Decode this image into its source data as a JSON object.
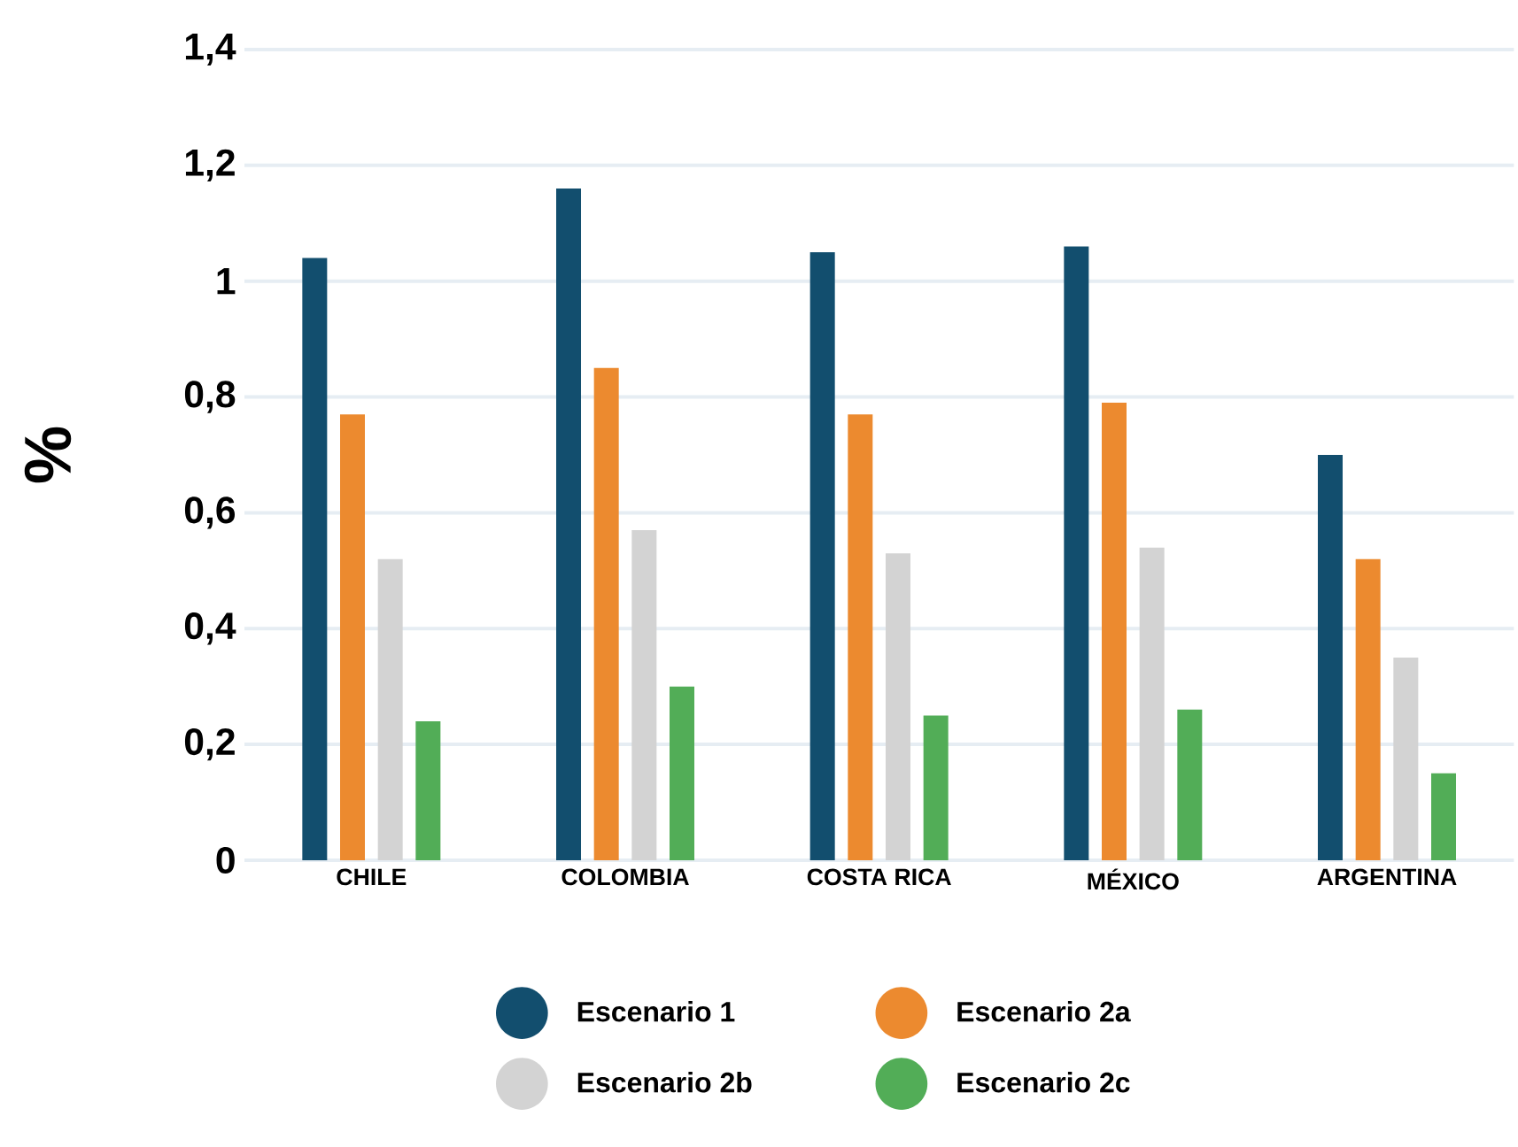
{
  "chart_data": {
    "type": "bar",
    "ylabel": "%",
    "categories": [
      "CHILE",
      "COLOMBIA",
      "COSTA RICA",
      "MÉXICO",
      "ARGENTINA"
    ],
    "series": [
      {
        "name": "Escenario 1",
        "color": "#124e6e",
        "values": [
          1.04,
          1.16,
          1.05,
          1.06,
          0.7
        ]
      },
      {
        "name": "Escenario 2a",
        "color": "#ec8a2f",
        "values": [
          0.77,
          0.85,
          0.77,
          0.79,
          0.52
        ]
      },
      {
        "name": "Escenario 2b",
        "color": "#d3d3d3",
        "values": [
          0.52,
          0.57,
          0.53,
          0.54,
          0.35
        ]
      },
      {
        "name": "Escenario 2c",
        "color": "#52ad57",
        "values": [
          0.24,
          0.3,
          0.25,
          0.26,
          0.15
        ]
      }
    ],
    "ylim": [
      0,
      1.4
    ],
    "yticks": [
      0,
      {
        "value": 0.2,
        "label": "0,2"
      },
      {
        "value": 0.4,
        "label": "0,4"
      },
      {
        "value": 0.6,
        "label": "0,6"
      },
      {
        "value": 0.8,
        "label": "0,8"
      },
      1,
      {
        "value": 1.2,
        "label": "1,2"
      },
      {
        "value": 1.4,
        "label": "1,4"
      }
    ],
    "grid": "y",
    "legend": "bottom"
  }
}
